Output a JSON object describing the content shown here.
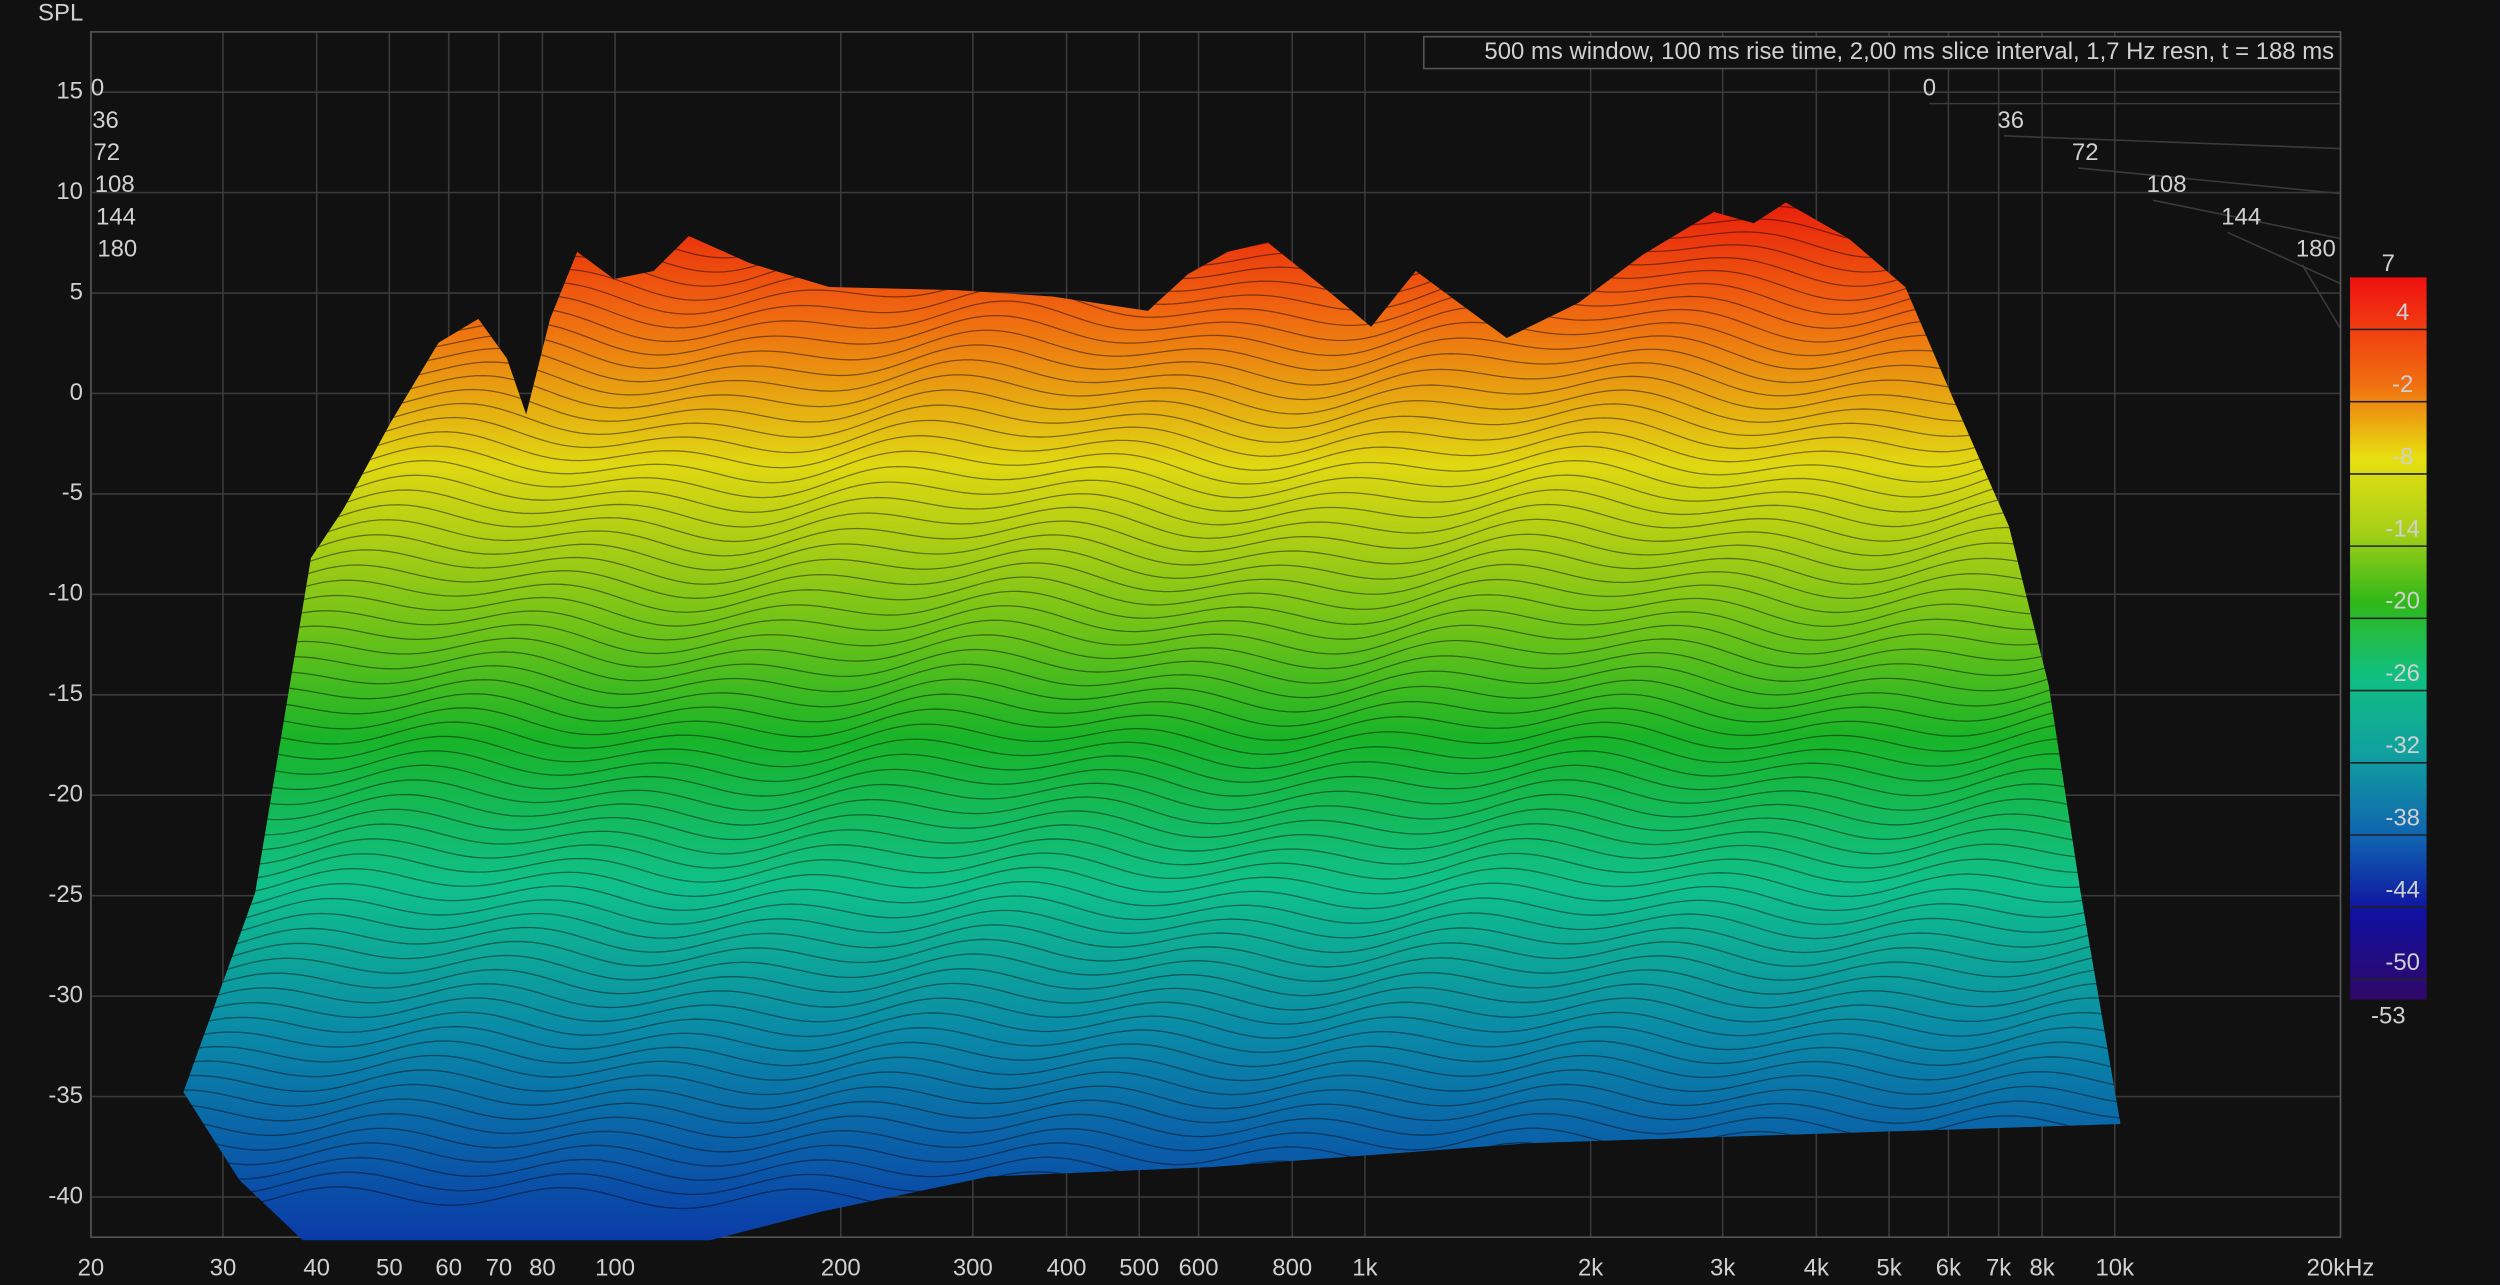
{
  "chart_data": {
    "type": "waterfall",
    "y_label": "SPL",
    "annotation": "500 ms window, 100 ms rise time, 2,00 ms slice interval, 1,7 Hz resn, t = 188 ms",
    "x_log": true,
    "xlim": [
      20,
      20000
    ],
    "xticks": [
      20,
      30,
      40,
      50,
      60,
      70,
      80,
      100,
      200,
      300,
      400,
      500,
      600,
      800,
      {
        "value": 1000,
        "label": "1k"
      },
      {
        "value": 2000,
        "label": "2k"
      },
      {
        "value": 3000,
        "label": "3k"
      },
      {
        "value": 4000,
        "label": "4k"
      },
      {
        "value": 5000,
        "label": "5k"
      },
      {
        "value": 6000,
        "label": "6k"
      },
      {
        "value": 7000,
        "label": "7k"
      },
      {
        "value": 8000,
        "label": "8k"
      },
      {
        "value": 10000,
        "label": "10k"
      },
      {
        "value": 20000,
        "label": "20kHz"
      }
    ],
    "ylim": [
      -42,
      18
    ],
    "yticks": [
      15,
      10,
      5,
      0,
      -5,
      -10,
      -15,
      -20,
      -25,
      -30,
      -35,
      -40
    ],
    "zlim": [
      0,
      180
    ],
    "zticks": [
      0,
      36,
      72,
      108,
      144,
      180
    ],
    "clim": [
      -53,
      7
    ],
    "cticks": [
      4,
      -2,
      -8,
      -14,
      -20,
      -26,
      -32,
      -38,
      -44,
      -50
    ],
    "grid": true
  }
}
